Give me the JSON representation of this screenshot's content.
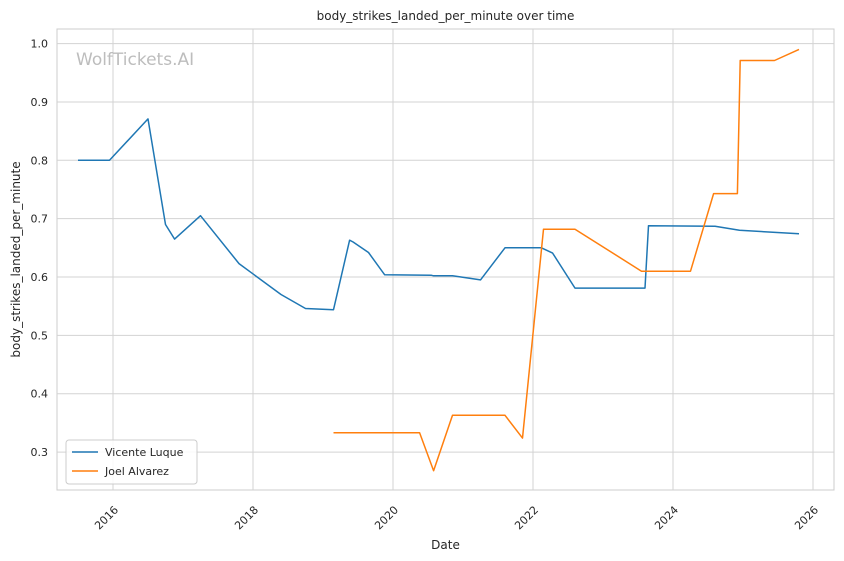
{
  "chart_data": {
    "type": "line",
    "title": "body_strikes_landed_per_minute over time",
    "xlabel": "Date",
    "ylabel": "body_strikes_landed_per_minute",
    "watermark": "WolfTickets.AI",
    "xlim": [
      2015.2,
      2026.3
    ],
    "ylim": [
      0.235,
      1.025
    ],
    "xticks": [
      2016,
      2018,
      2020,
      2022,
      2024,
      2026
    ],
    "xtick_labels": [
      "2016",
      "2018",
      "2020",
      "2022",
      "2024",
      "2026"
    ],
    "yticks": [
      0.3,
      0.4,
      0.5,
      0.6,
      0.7,
      0.8,
      0.9,
      1.0
    ],
    "ytick_labels": [
      "0.3",
      "0.4",
      "0.5",
      "0.6",
      "0.7",
      "0.8",
      "0.9",
      "1.0"
    ],
    "grid": true,
    "legend_position": "bottom-left",
    "series": [
      {
        "name": "Vicente Luque",
        "color": "#1f77b4",
        "points": [
          [
            2015.5,
            0.8
          ],
          [
            2015.95,
            0.8
          ],
          [
            2016.5,
            0.871
          ],
          [
            2016.75,
            0.69
          ],
          [
            2016.88,
            0.665
          ],
          [
            2017.25,
            0.705
          ],
          [
            2017.8,
            0.623
          ],
          [
            2018.4,
            0.57
          ],
          [
            2018.75,
            0.546
          ],
          [
            2019.15,
            0.544
          ],
          [
            2019.38,
            0.663
          ],
          [
            2019.43,
            0.66
          ],
          [
            2019.65,
            0.642
          ],
          [
            2019.88,
            0.604
          ],
          [
            2020.55,
            0.603
          ],
          [
            2020.58,
            0.602
          ],
          [
            2020.85,
            0.602
          ],
          [
            2021.25,
            0.595
          ],
          [
            2021.6,
            0.65
          ],
          [
            2022.12,
            0.65
          ],
          [
            2022.28,
            0.641
          ],
          [
            2022.6,
            0.581
          ],
          [
            2023.6,
            0.581
          ],
          [
            2023.65,
            0.688
          ],
          [
            2024.6,
            0.687
          ],
          [
            2024.95,
            0.68
          ],
          [
            2025.8,
            0.674
          ]
        ]
      },
      {
        "name": "Joel Alvarez",
        "color": "#ff7f0e",
        "points": [
          [
            2019.15,
            0.333
          ],
          [
            2020.38,
            0.333
          ],
          [
            2020.58,
            0.268
          ],
          [
            2020.85,
            0.363
          ],
          [
            2021.6,
            0.363
          ],
          [
            2021.85,
            0.324
          ],
          [
            2022.15,
            0.682
          ],
          [
            2022.6,
            0.682
          ],
          [
            2023.55,
            0.61
          ],
          [
            2024.25,
            0.61
          ],
          [
            2024.58,
            0.743
          ],
          [
            2024.92,
            0.743
          ],
          [
            2024.96,
            0.971
          ],
          [
            2025.45,
            0.971
          ],
          [
            2025.8,
            0.99
          ]
        ]
      }
    ]
  }
}
